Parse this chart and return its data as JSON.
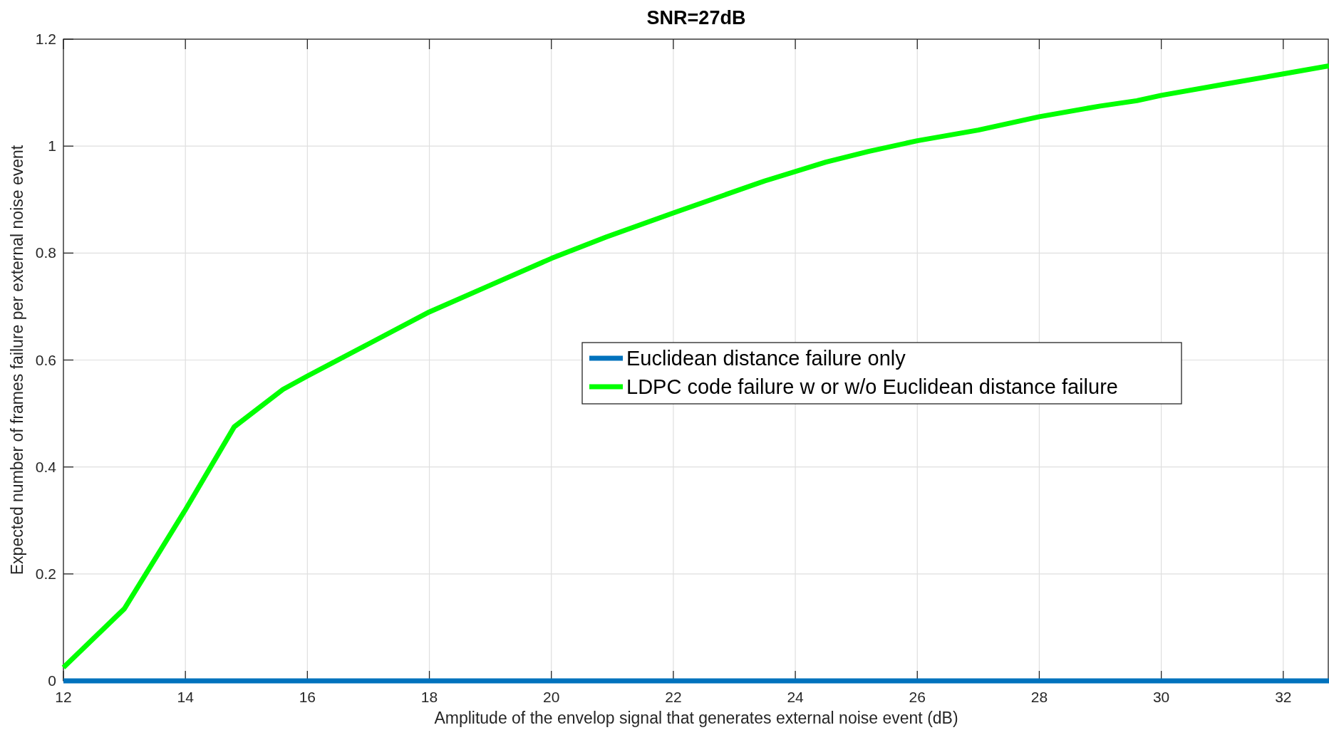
{
  "chart_data": {
    "type": "line",
    "title": "SNR=27dB",
    "xlabel": "Amplitude of the envelop signal that generates external noise event (dB)",
    "ylabel": "Expected number of frames failure per external noise event",
    "xlim": [
      12,
      32.75
    ],
    "xticks": [
      12,
      14,
      16,
      18,
      20,
      22,
      24,
      26,
      28,
      30,
      32
    ],
    "ylim": [
      0,
      1.2
    ],
    "yticks": [
      0,
      0.2,
      0.4,
      0.6,
      0.8,
      1,
      1.2
    ],
    "grid": true,
    "legend": "right",
    "line_style": "solid",
    "series": [
      {
        "name": "Euclidean distance failure only",
        "color": "#0072bd",
        "x": [
          12,
          32.75
        ],
        "values": [
          0,
          0
        ]
      },
      {
        "name": "LDPC code failure w or w/o Euclidean distance failure",
        "color": "#00ff00",
        "x": [
          12,
          13,
          14,
          14.8,
          15.6,
          16,
          17,
          18,
          19,
          20,
          20.9,
          22,
          23.5,
          24.5,
          25.2,
          26,
          27,
          28,
          29,
          29.6,
          30,
          31,
          32,
          32.75
        ],
        "values": [
          0.025,
          0.135,
          0.32,
          0.475,
          0.545,
          0.57,
          0.63,
          0.69,
          0.74,
          0.79,
          0.83,
          0.875,
          0.935,
          0.97,
          0.99,
          1.01,
          1.03,
          1.055,
          1.075,
          1.085,
          1.095,
          1.115,
          1.135,
          1.15
        ]
      }
    ]
  }
}
